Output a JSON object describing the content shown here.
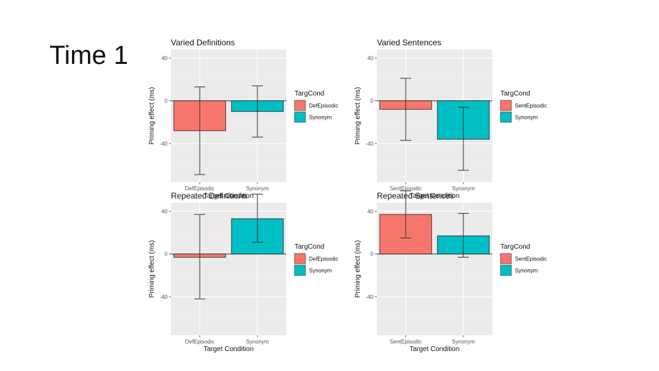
{
  "slide": {
    "title": "Time 1"
  },
  "chart_data": [
    {
      "type": "bar",
      "title": "Varied Definitions",
      "xlabel": "Target Condition",
      "ylabel": "Priming effect (ms)",
      "categories": [
        "DefEpisodic",
        "Synonym"
      ],
      "values": [
        -28,
        -10
      ],
      "error_low": [
        -69,
        -34
      ],
      "error_high": [
        13,
        14
      ],
      "ylim": [
        -76,
        48
      ],
      "yticks": [
        40,
        0,
        -40
      ],
      "grid": true,
      "legend": {
        "title": "TargCond",
        "entries": [
          "DefEpisodic",
          "Synonym"
        ],
        "position": "right"
      },
      "colors": [
        "#F8766D",
        "#00BFC4"
      ]
    },
    {
      "type": "bar",
      "title": "Varied Sentences",
      "xlabel": "Target Condition",
      "ylabel": "Priming effect (ms)",
      "categories": [
        "SentEpisodic",
        "Synonym"
      ],
      "values": [
        -8,
        -36
      ],
      "error_low": [
        -37,
        -65
      ],
      "error_high": [
        21,
        -6
      ],
      "ylim": [
        -76,
        48
      ],
      "yticks": [
        40,
        0,
        -40
      ],
      "grid": true,
      "legend": {
        "title": "TargCond",
        "entries": [
          "SentEpisodic",
          "Synonym"
        ],
        "position": "right"
      },
      "colors": [
        "#F8766D",
        "#00BFC4"
      ]
    },
    {
      "type": "bar",
      "title": "Repeated Definitions",
      "xlabel": "Target Condition",
      "ylabel": "Priming effect (ms)",
      "categories": [
        "DefEpisodic",
        "Synonym"
      ],
      "values": [
        -3,
        33
      ],
      "error_low": [
        -42,
        11
      ],
      "error_high": [
        37,
        56
      ],
      "ylim": [
        -76,
        48
      ],
      "yticks": [
        40,
        0,
        -40
      ],
      "grid": true,
      "legend": {
        "title": "TargCond",
        "entries": [
          "DefEpisodic",
          "Synonym"
        ],
        "position": "right"
      },
      "colors": [
        "#F8766D",
        "#00BFC4"
      ]
    },
    {
      "type": "bar",
      "title": "Repeated Sentences",
      "xlabel": "Target Condition",
      "ylabel": "Priming effect (ms)",
      "categories": [
        "SentEpisodic",
        "Synonym"
      ],
      "values": [
        37,
        17
      ],
      "error_low": [
        15,
        -3
      ],
      "error_high": [
        59,
        38
      ],
      "ylim": [
        -76,
        48
      ],
      "yticks": [
        40,
        0,
        -40
      ],
      "grid": true,
      "legend": {
        "title": "TargCond",
        "entries": [
          "SentEpisodic",
          "Synonym"
        ],
        "position": "right"
      },
      "colors": [
        "#F8766D",
        "#00BFC4"
      ]
    }
  ]
}
